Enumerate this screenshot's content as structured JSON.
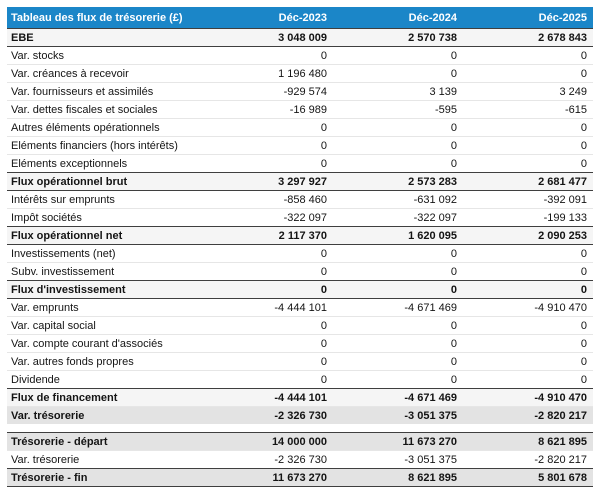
{
  "title": "Tableau des flux de trésorerie (£)",
  "columns": [
    "Déc-2023",
    "Déc-2024",
    "Déc-2025"
  ],
  "colors": {
    "header_bg": "#1b86c8",
    "header_text": "#ffffff",
    "subtotal_row_bg": "#f5f5f5",
    "highlight_row_bg": "#e3e3e3",
    "dark_line": "#3f3f3f",
    "light_line": "#e6e6e6"
  },
  "rows": [
    {
      "label": "EBE",
      "values": [
        "3 048 009",
        "2 570 738",
        "2 678 843"
      ],
      "style": "subtotal",
      "bt": "dark"
    },
    {
      "label": "Var. stocks",
      "values": [
        "0",
        "0",
        "0"
      ],
      "style": "normal",
      "bt": "dark"
    },
    {
      "label": "Var. créances à recevoir",
      "values": [
        "1 196 480",
        "0",
        "0"
      ],
      "style": "normal",
      "bt": "light"
    },
    {
      "label": "Var. fournisseurs et assimilés",
      "values": [
        "-929 574",
        "3 139",
        "3 249"
      ],
      "style": "normal",
      "bt": "light"
    },
    {
      "label": "Var. dettes fiscales et sociales",
      "values": [
        "-16 989",
        "-595",
        "-615"
      ],
      "style": "normal",
      "bt": "light"
    },
    {
      "label": "Autres éléments opérationnels",
      "values": [
        "0",
        "0",
        "0"
      ],
      "style": "normal",
      "bt": "light"
    },
    {
      "label": "Eléments financiers (hors intérêts)",
      "values": [
        "0",
        "0",
        "0"
      ],
      "style": "normal",
      "bt": "light"
    },
    {
      "label": "Eléments exceptionnels",
      "values": [
        "0",
        "0",
        "0"
      ],
      "style": "normal",
      "bt": "light"
    },
    {
      "label": "Flux opérationnel brut",
      "values": [
        "3 297 927",
        "2 573 283",
        "2 681 477"
      ],
      "style": "subtotal",
      "bt": "dark"
    },
    {
      "label": "Intérêts sur emprunts",
      "values": [
        "-858 460",
        "-631 092",
        "-392 091"
      ],
      "style": "normal",
      "bt": "dark"
    },
    {
      "label": "Impôt sociétés",
      "values": [
        "-322 097",
        "-322 097",
        "-199 133"
      ],
      "style": "normal",
      "bt": "light"
    },
    {
      "label": "Flux opérationnel net",
      "values": [
        "2 117 370",
        "1 620 095",
        "2 090 253"
      ],
      "style": "subtotal",
      "bt": "dark"
    },
    {
      "label": "Investissements (net)",
      "values": [
        "0",
        "0",
        "0"
      ],
      "style": "normal",
      "bt": "dark"
    },
    {
      "label": "Subv. investissement",
      "values": [
        "0",
        "0",
        "0"
      ],
      "style": "normal",
      "bt": "light"
    },
    {
      "label": "Flux d'investissement",
      "values": [
        "0",
        "0",
        "0"
      ],
      "style": "subtotal",
      "bt": "dark"
    },
    {
      "label": "Var. emprunts",
      "values": [
        "-4 444 101",
        "-4 671 469",
        "-4 910 470"
      ],
      "style": "normal",
      "bt": "dark"
    },
    {
      "label": "Var. capital social",
      "values": [
        "0",
        "0",
        "0"
      ],
      "style": "normal",
      "bt": "light"
    },
    {
      "label": "Var. compte courant d'associés",
      "values": [
        "0",
        "0",
        "0"
      ],
      "style": "normal",
      "bt": "light"
    },
    {
      "label": "Var. autres fonds propres",
      "values": [
        "0",
        "0",
        "0"
      ],
      "style": "normal",
      "bt": "light"
    },
    {
      "label": "Dividende",
      "values": [
        "0",
        "0",
        "0"
      ],
      "style": "normal",
      "bt": "light"
    },
    {
      "label": "Flux de financement",
      "values": [
        "-4 444 101",
        "-4 671 469",
        "-4 910 470"
      ],
      "style": "subtotal",
      "bt": "dark"
    },
    {
      "label": "Var. trésorerie",
      "values": [
        "-2 326 730",
        "-3 051 375",
        "-2 820 217"
      ],
      "style": "highlight",
      "bt": "light"
    },
    {
      "label": "",
      "values": [
        "",
        "",
        ""
      ],
      "style": "spacer",
      "bt": "none"
    },
    {
      "label": "Trésorerie - départ",
      "values": [
        "14 000 000",
        "11 673 270",
        "8 621 895"
      ],
      "style": "highlight",
      "bt": "dark"
    },
    {
      "label": "Var. trésorerie",
      "values": [
        "-2 326 730",
        "-3 051 375",
        "-2 820 217"
      ],
      "style": "normal",
      "bt": "light"
    },
    {
      "label": "Trésorerie - fin",
      "values": [
        "11 673 270",
        "8 621 895",
        "5 801 678"
      ],
      "style": "highlight",
      "bt": "dark"
    }
  ]
}
